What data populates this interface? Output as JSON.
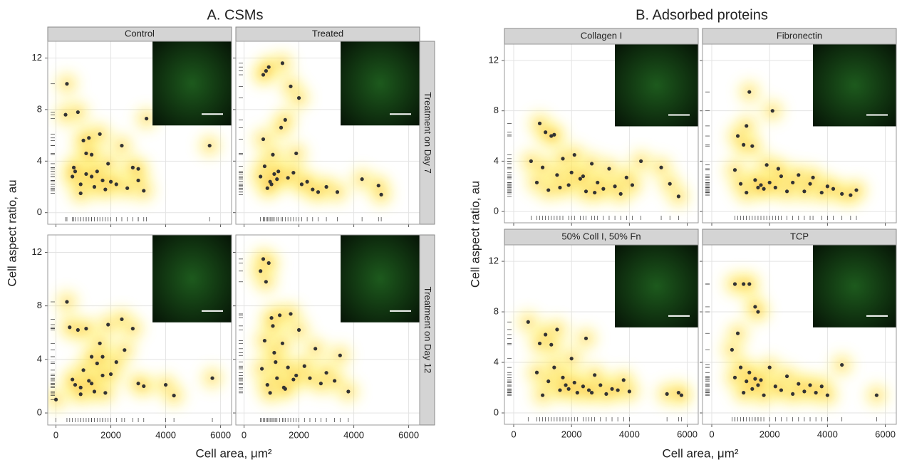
{
  "chart_data": [
    {
      "type": "scatter",
      "title": "A. CSMs",
      "xlabel": "Cell area, μm²",
      "ylabel": "Cell aspect ratio, au",
      "xlim": [
        -300,
        6400
      ],
      "ylim": [
        -0.9,
        13.3
      ],
      "xticks": [
        0,
        2000,
        4000,
        6000
      ],
      "yticks": [
        0,
        4,
        8,
        12
      ],
      "point_color": "#333333",
      "grid": true,
      "col_strips": [
        "Control",
        "Treated"
      ],
      "row_strips": [
        "Treatment on Day 7",
        "Treatment on Day 12"
      ],
      "panels": [
        {
          "x": [
            400,
            650,
            800,
            900,
            1000,
            1100,
            1200,
            1300,
            1400,
            1500,
            1600,
            1700,
            1800,
            1900,
            2000,
            2200,
            2400,
            2600,
            2800,
            3000,
            3200,
            3300,
            600,
            700,
            900,
            1100,
            1300,
            5600,
            3000,
            350
          ],
          "y": [
            10,
            3.5,
            7.8,
            2.2,
            5.6,
            3,
            5.8,
            4.5,
            2,
            3.2,
            6.1,
            2.5,
            1.8,
            3.8,
            2.4,
            2.2,
            5.2,
            1.9,
            3.5,
            2.5,
            1.7,
            7.3,
            2.8,
            3.2,
            1.5,
            4.6,
            2.8,
            5.2,
            3.4,
            7.6
          ]
        },
        {
          "x": [
            800,
            900,
            1000,
            1100,
            1200,
            1400,
            1500,
            1700,
            1900,
            2000,
            2100,
            2300,
            2500,
            2700,
            3000,
            3400,
            4300,
            4900,
            5000,
            600,
            700,
            750,
            850,
            950,
            1050,
            1250,
            1350,
            1600,
            1800,
            700
          ],
          "y": [
            11,
            11.3,
            2.2,
            3,
            2.6,
            11.6,
            7.2,
            9.8,
            4.6,
            8.9,
            2.2,
            2.4,
            1.8,
            1.6,
            2,
            1.6,
            2.6,
            2.1,
            1.4,
            2.8,
            5.7,
            3.6,
            1.9,
            2.4,
            4.5,
            3.2,
            6.6,
            2.7,
            3.1,
            10.7
          ]
        },
        {
          "x": [
            0,
            400,
            500,
            700,
            800,
            900,
            1000,
            1100,
            1200,
            1300,
            1400,
            1500,
            1600,
            1700,
            1800,
            1900,
            2000,
            2200,
            2400,
            2500,
            2800,
            3000,
            3200,
            4000,
            4300,
            5700,
            600,
            900,
            1300,
            1700
          ],
          "y": [
            1,
            8.3,
            6.4,
            2.1,
            6.2,
            1.9,
            3.2,
            6.3,
            2.4,
            4.2,
            1.6,
            3.7,
            5.2,
            2.8,
            1.5,
            6.6,
            2.9,
            3.8,
            7,
            4.7,
            6.3,
            2.2,
            2,
            2.1,
            1.3,
            2.6,
            2.5,
            1.4,
            2.2,
            4.2
          ]
        },
        {
          "x": [
            600,
            700,
            800,
            900,
            1000,
            1100,
            1200,
            1300,
            1400,
            1500,
            1600,
            1700,
            1800,
            2000,
            2200,
            2400,
            2600,
            2800,
            3000,
            3300,
            3500,
            3800,
            650,
            750,
            850,
            950,
            1050,
            1150,
            1450,
            1900
          ],
          "y": [
            10.6,
            11.5,
            9.8,
            11.2,
            7.1,
            4.5,
            2.6,
            7.3,
            5.2,
            1.8,
            3.4,
            7.4,
            2.5,
            6.2,
            3.5,
            2.6,
            4.8,
            2.2,
            3,
            2.4,
            4.3,
            1.6,
            3.3,
            5.4,
            2.1,
            1.5,
            6.5,
            3.8,
            1.9,
            2.8
          ]
        }
      ]
    },
    {
      "type": "scatter",
      "title": "B. Adsorbed proteins",
      "xlabel": "Cell area, μm²",
      "ylabel": "Cell aspect ratio, au",
      "xlim": [
        -320,
        6380
      ],
      "ylim": [
        -0.9,
        13.3
      ],
      "xticks": [
        0,
        2000,
        4000,
        6000
      ],
      "yticks": [
        0,
        4,
        8,
        12
      ],
      "point_color": "#333333",
      "grid": true,
      "panels": [
        {
          "strip": "Collagen I",
          "x": [
            900,
            1100,
            1300,
            1400,
            600,
            800,
            1000,
            1200,
            1500,
            1700,
            1900,
            2100,
            2300,
            2500,
            2700,
            2900,
            3100,
            3300,
            3500,
            3700,
            3900,
            4100,
            4400,
            5100,
            5400,
            5700,
            1600,
            2000,
            2400,
            2800
          ],
          "y": [
            7,
            6.3,
            6,
            6.1,
            4,
            2.3,
            3.5,
            1.7,
            2.9,
            4.2,
            2.1,
            4.5,
            2.6,
            1.6,
            3.8,
            2.3,
            1.8,
            3.4,
            2,
            1.4,
            2.7,
            2.1,
            4,
            3.5,
            2.2,
            1.2,
            1.9,
            3.1,
            2.8,
            1.5
          ]
        },
        {
          "strip": "Fibronectin",
          "x": [
            1300,
            2100,
            900,
            1200,
            1100,
            1400,
            800,
            1000,
            1200,
            1500,
            1700,
            1800,
            1900,
            2000,
            2200,
            2400,
            2600,
            2800,
            3000,
            3200,
            3400,
            3500,
            3800,
            4000,
            4200,
            4500,
            4800,
            5000,
            1600,
            2300
          ],
          "y": [
            9.5,
            8,
            6,
            6.8,
            5.3,
            5.2,
            3.3,
            2.2,
            1.5,
            2.5,
            2.1,
            1.8,
            3.7,
            2.3,
            1.9,
            2.8,
            1.6,
            2.3,
            2.9,
            1.6,
            2.2,
            2.7,
            1.5,
            2,
            1.8,
            1.4,
            1.3,
            1.7,
            1.9,
            3.4
          ]
        },
        {
          "strip": "50% Coll I, 50% Fn",
          "x": [
            500,
            900,
            1100,
            1300,
            1500,
            1700,
            800,
            1000,
            1200,
            1400,
            1600,
            1800,
            2000,
            2200,
            2400,
            2500,
            2600,
            2800,
            3000,
            3200,
            3400,
            3600,
            3800,
            4000,
            5300,
            5700,
            5800,
            1900,
            2100,
            2700
          ],
          "y": [
            7.2,
            5.5,
            6.2,
            5.4,
            6.6,
            2.8,
            3.2,
            1.4,
            2.5,
            3.6,
            1.8,
            2.2,
            4.3,
            1.6,
            2.1,
            5.9,
            1.8,
            3,
            2.2,
            1.5,
            1.9,
            1.8,
            2.6,
            1.7,
            1.5,
            1.6,
            1.4,
            1.9,
            2.4,
            1.6
          ]
        },
        {
          "strip": "TCP",
          "x": [
            800,
            1100,
            1300,
            1500,
            1600,
            900,
            700,
            800,
            1000,
            1100,
            1200,
            1300,
            1400,
            1500,
            1600,
            1800,
            2000,
            2200,
            2400,
            2600,
            2800,
            3000,
            3200,
            3400,
            3600,
            3800,
            4000,
            4500,
            5700,
            1700
          ],
          "y": [
            10.2,
            10.2,
            10.2,
            8.4,
            8,
            6.3,
            5,
            2.8,
            3.6,
            1.6,
            2.5,
            3.2,
            1.9,
            2.7,
            2.2,
            1.4,
            3.6,
            2.1,
            1.8,
            2.9,
            1.5,
            2.3,
            1.7,
            2.2,
            1.6,
            2.1,
            1.4,
            3.8,
            1.4,
            2.6
          ]
        }
      ]
    }
  ]
}
